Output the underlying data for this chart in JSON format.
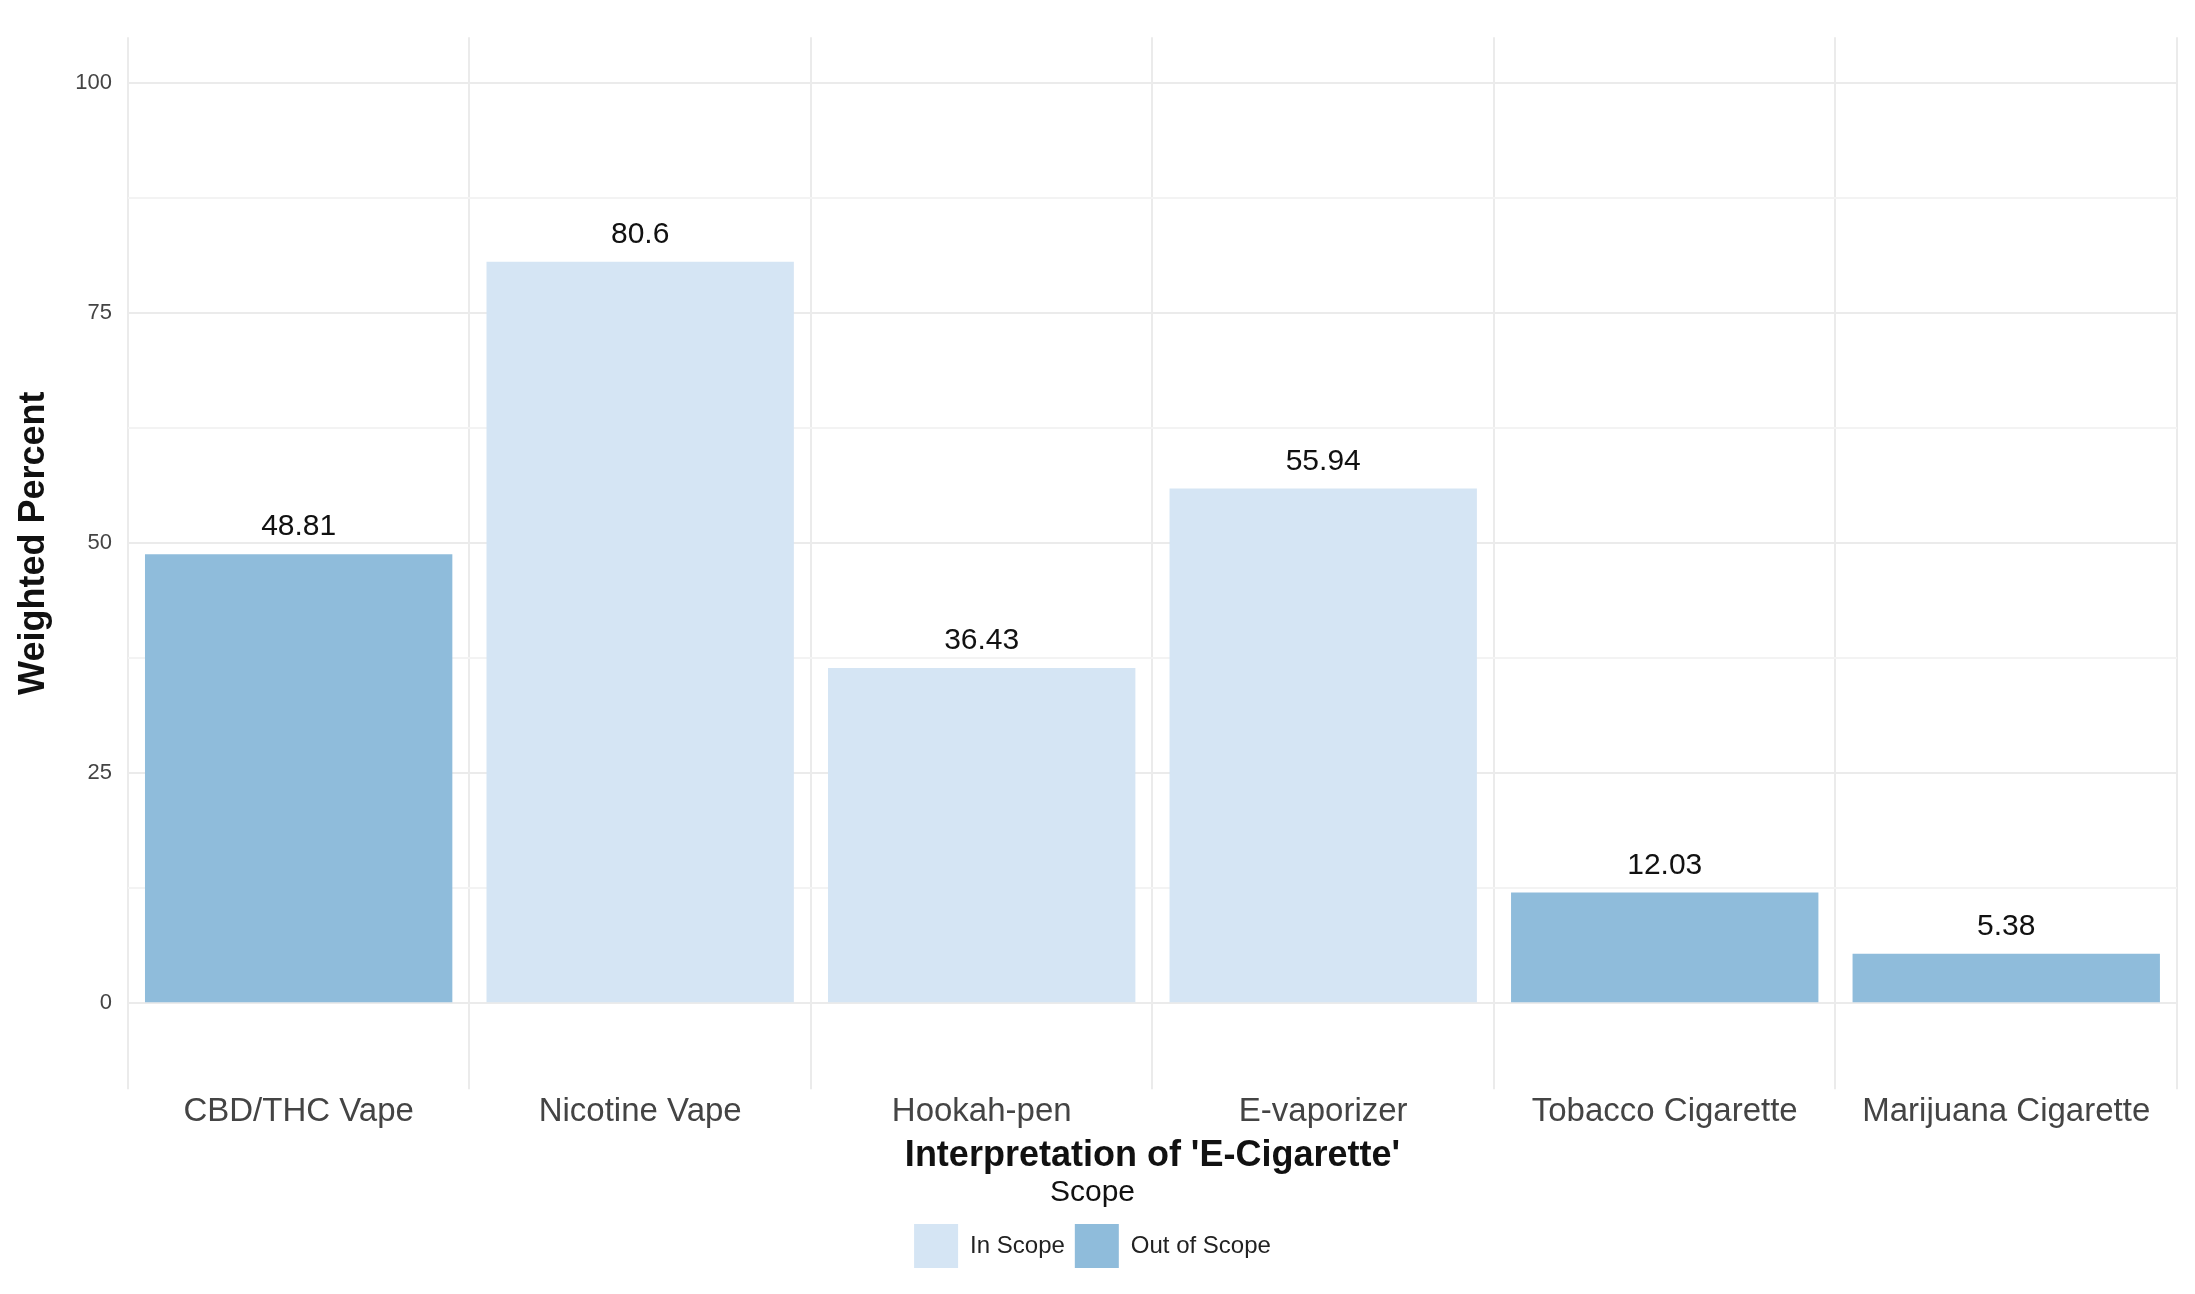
{
  "chart_data": {
    "type": "bar",
    "xlabel": "Interpretation of 'E-Cigarette'",
    "ylabel": "Weighted Percent",
    "legend_title": "Scope",
    "categories": [
      "CBD/THC Vape",
      "Nicotine Vape",
      "Hookah-pen",
      "E-vaporizer",
      "Tobacco Cigarette",
      "Marijuana Cigarette"
    ],
    "series": [
      {
        "name": "In Scope",
        "color": "#d5e5f4",
        "values": [
          null,
          80.6,
          36.43,
          55.94,
          null,
          null
        ]
      },
      {
        "name": "Out of Scope",
        "color": "#8fbcdb",
        "values": [
          48.81,
          null,
          null,
          null,
          12.03,
          5.38
        ]
      }
    ],
    "ylim": [
      -5,
      105
    ],
    "yticks": [
      0,
      {
        "value": 12.5,
        "label": null
      },
      25,
      {
        "value": 37.5,
        "label": null
      },
      50,
      {
        "value": 62.5,
        "label": null
      },
      75,
      {
        "value": 87.5,
        "label": null
      },
      100
    ],
    "grid": true,
    "legend": "bottom",
    "data_labels": true
  }
}
